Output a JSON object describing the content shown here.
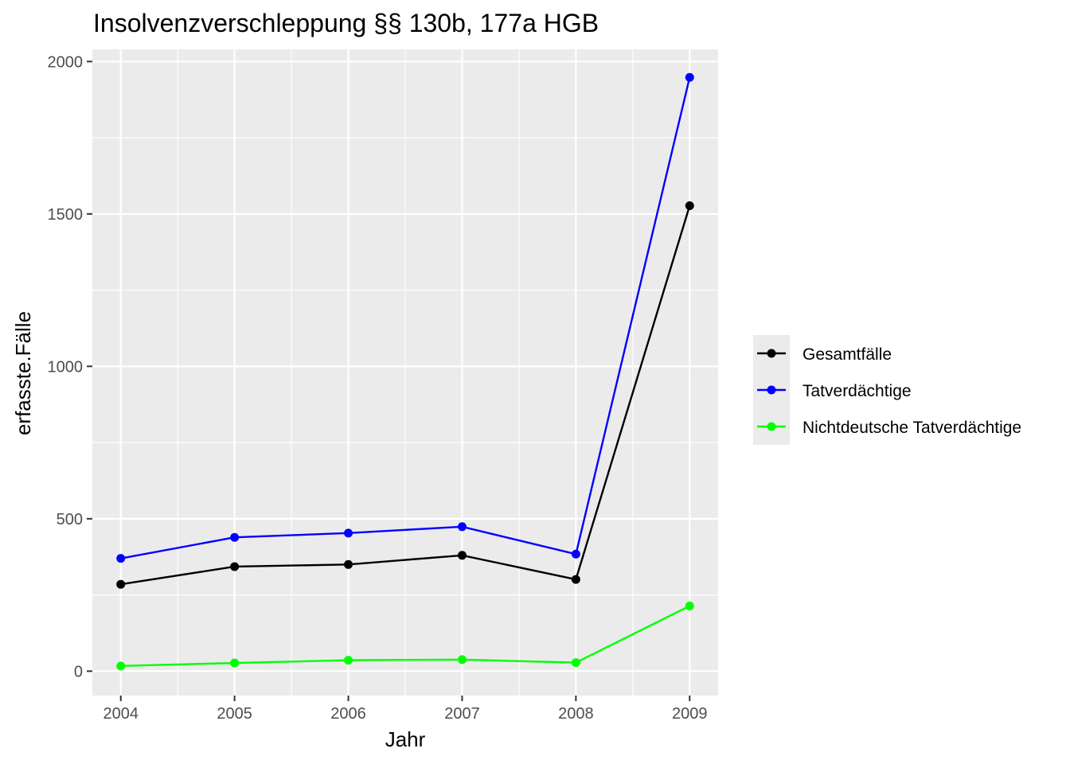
{
  "chart_data": {
    "type": "line",
    "title": "Insolvenzverschleppung §§ 130b, 177a HGB",
    "xlabel": "Jahr",
    "ylabel": "erfasste.Fälle",
    "x": [
      2004,
      2005,
      2006,
      2007,
      2008,
      2009
    ],
    "x_tick_labels": [
      "2004",
      "2005",
      "2006",
      "2007",
      "2008",
      "2009"
    ],
    "xlim": [
      2003.75,
      2009.25
    ],
    "ylim": [
      -80,
      2040
    ],
    "y_ticks": [
      0,
      500,
      1000,
      1500,
      2000
    ],
    "y_tick_labels": [
      "0",
      "500",
      "1000",
      "1500",
      "2000"
    ],
    "grid": true,
    "legend_position": "right",
    "series": [
      {
        "name": "Gesamtfälle",
        "color": "#000000",
        "values": [
          285,
          343,
          350,
          380,
          301,
          1527
        ]
      },
      {
        "name": "Tatverdächtige",
        "color": "#0000ff",
        "values": [
          370,
          439,
          453,
          474,
          384,
          1948
        ]
      },
      {
        "name": "Nichtdeutsche Tatverdächtige",
        "color": "#00ff00",
        "values": [
          17,
          27,
          36,
          38,
          28,
          214
        ]
      }
    ]
  }
}
